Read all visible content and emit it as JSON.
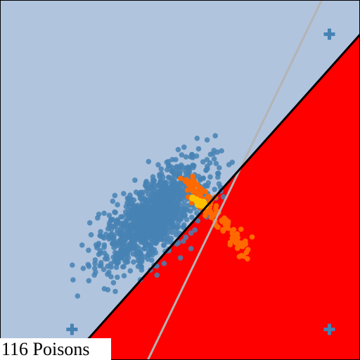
{
  "chart_data": {
    "type": "scatter",
    "title": "",
    "xlabel": "",
    "ylabel": "",
    "xlim": [
      0,
      1
    ],
    "ylim": [
      0,
      1
    ],
    "grid": false,
    "legend": "none",
    "annotation": "116 Poisons",
    "colors": {
      "region_negative": "#b0c4de",
      "region_positive": "#ff0000",
      "clean_points": "#4682b4",
      "poison_points": "#ff6a00",
      "poison_core": "#ffc000",
      "decision_boundary": "#000000",
      "clean_boundary": "#b4b4b4"
    },
    "decision_boundary": {
      "slope": 1.12,
      "intercept": -0.216
    },
    "clean_boundary": {
      "slope": 2.07,
      "intercept": -0.85
    },
    "centroid_markers": [
      {
        "x": 0.915,
        "y": 0.905,
        "symbol": "plus"
      },
      {
        "x": 0.2,
        "y": 0.085,
        "symbol": "plus"
      },
      {
        "x": 0.915,
        "y": 0.085,
        "symbol": "plus"
      }
    ],
    "clean_cloud": {
      "count": 1150,
      "mean": [
        0.43,
        0.4
      ],
      "principal_axis": [
        0.707,
        0.707
      ],
      "sd_major": 0.095,
      "sd_minor": 0.04
    },
    "poison_cloud": {
      "count": 116,
      "start": [
        0.52,
        0.5
      ],
      "end": [
        0.68,
        0.3
      ],
      "spread": 0.012
    },
    "poison_core_points": [
      [
        0.545,
        0.445
      ],
      [
        0.555,
        0.44
      ],
      [
        0.56,
        0.43
      ],
      [
        0.565,
        0.438
      ],
      [
        0.55,
        0.432
      ],
      [
        0.57,
        0.428
      ],
      [
        0.535,
        0.45
      ]
    ]
  }
}
